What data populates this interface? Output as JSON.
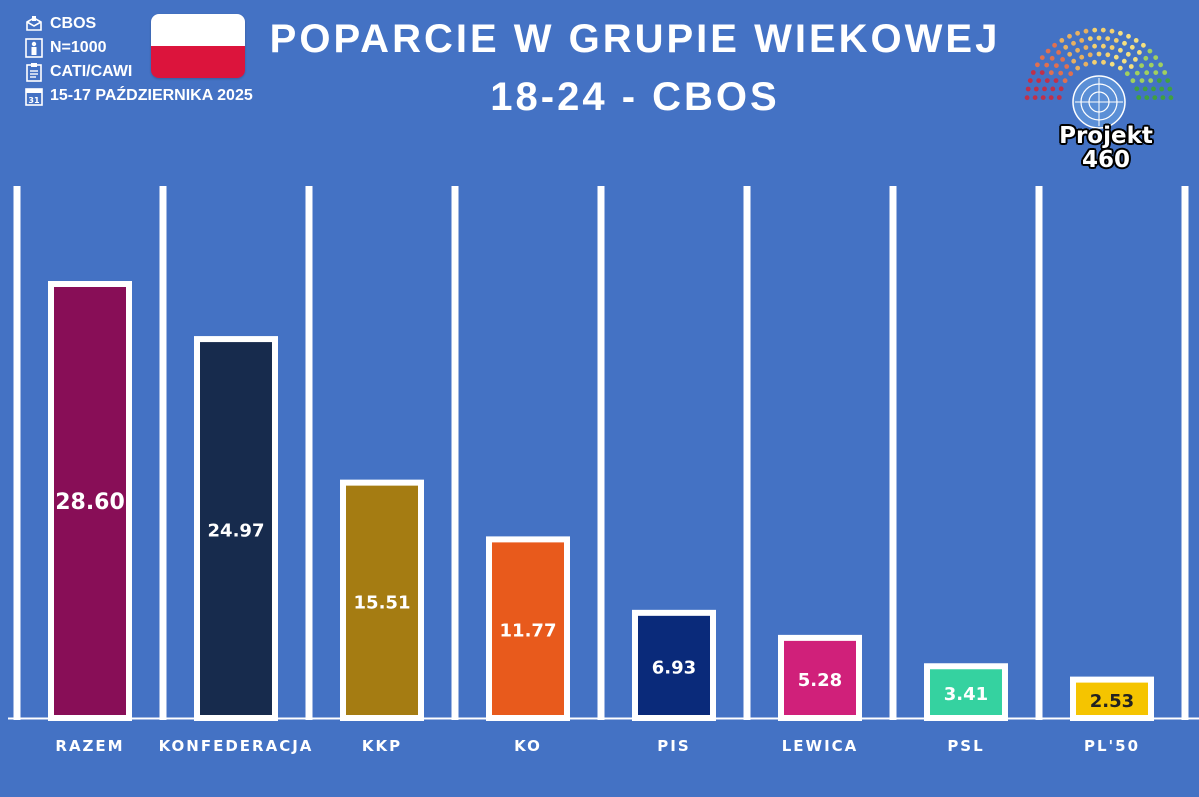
{
  "meta": {
    "pollster": "CBOS",
    "sample": "N=1000",
    "method": "CATI/CAWI",
    "dates": "15-17 PAŹDZIERNIKA 2025"
  },
  "title": {
    "line1": "POPARCIE W GRUPIE WIEKOWEJ",
    "line2": "18-24 - CBOS"
  },
  "logo": {
    "line1": "Projekt",
    "line2": "460"
  },
  "chart_data": {
    "type": "bar",
    "title": "POPARCIE W GRUPIE WIEKOWEJ 18-24 - CBOS",
    "categories": [
      "RAZEM",
      "KONFEDERACJA",
      "KKP",
      "KO",
      "PIS",
      "LEWICA",
      "PSL",
      "PL'50"
    ],
    "values": [
      28.6,
      24.97,
      15.51,
      11.77,
      6.93,
      5.28,
      3.41,
      2.53
    ],
    "labels": [
      "28.60",
      "24.97",
      "15.51",
      "11.77",
      "6.93",
      "5.28",
      "3.41",
      "2.53"
    ],
    "colors": [
      "#880e57",
      "#172b4d",
      "#a57c12",
      "#e85a1c",
      "#0a2a7a",
      "#d0207a",
      "#35d2a0",
      "#f5c400"
    ],
    "label_colors": [
      "#ffffff",
      "#ffffff",
      "#ffffff",
      "#ffffff",
      "#ffffff",
      "#ffffff",
      "#ffffff",
      "#222222"
    ],
    "xlabel": "",
    "ylabel": "",
    "grid": false,
    "legend": "none"
  }
}
